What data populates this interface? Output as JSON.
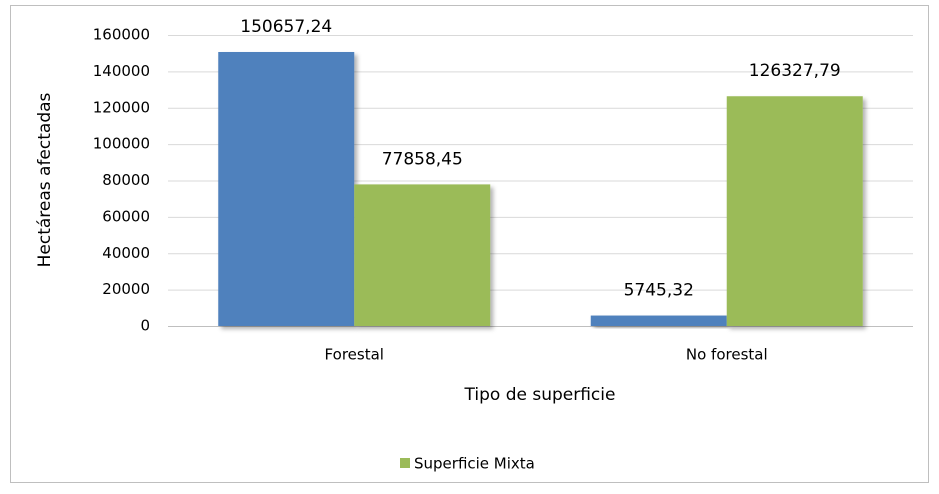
{
  "chart_data": {
    "type": "bar",
    "categories": [
      "Forestal",
      "No forestal"
    ],
    "series": [
      {
        "color": "#4f81bd",
        "values": [
          150657.24,
          5745.32
        ],
        "value_labels": [
          "150657,24",
          "5745,32"
        ]
      },
      {
        "name": "Superficie Mixta",
        "color": "#9bbb59",
        "values": [
          77858.45,
          126327.79
        ],
        "value_labels": [
          "77858,45",
          "126327,79"
        ]
      }
    ],
    "ylim": [
      0,
      160000
    ],
    "yticks": [
      0,
      20000,
      40000,
      60000,
      80000,
      100000,
      120000,
      140000,
      160000
    ],
    "y_label": "Hectáreas afectadas",
    "x_label": "Tipo de superficie",
    "grid": true,
    "legend": "bottom"
  }
}
